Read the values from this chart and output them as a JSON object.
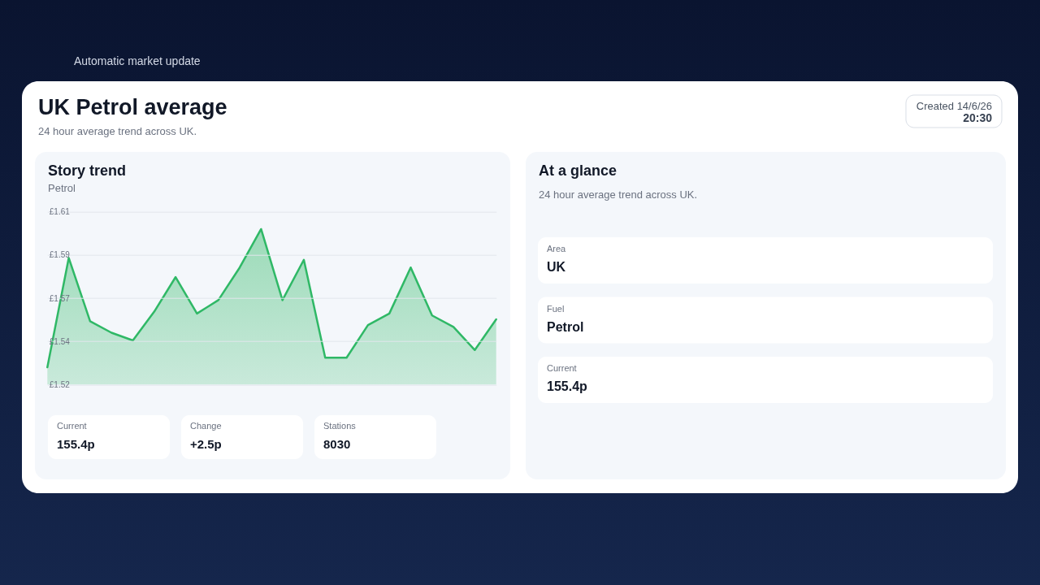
{
  "chart_data": [
    {
      "type": "area",
      "title": "Story trend",
      "subtitle": "Petrol",
      "categories": [
        null,
        null,
        null,
        null,
        null,
        null,
        null,
        null,
        null,
        null,
        null,
        null,
        null,
        null,
        null,
        null,
        null,
        null,
        null,
        null,
        null,
        null
      ],
      "series": [
        {
          "color": "#2fb866",
          "values": [
            1.529,
            1.586,
            1.553,
            1.547,
            1.543,
            1.558,
            1.576,
            1.557,
            1.564,
            1.581,
            1.601,
            1.564,
            1.585,
            1.534,
            1.534,
            1.551,
            1.557,
            1.581,
            1.556,
            1.55,
            1.538,
            1.554
          ]
        }
      ],
      "ylim": [
        1.52,
        1.61
      ],
      "yticks": [
        {
          "value": 1.52,
          "label": "£1.52"
        },
        {
          "value": 1.5425,
          "label": "£1.54"
        },
        {
          "value": 1.565,
          "label": "£1.57"
        },
        {
          "value": 1.5875,
          "label": "£1.59"
        },
        {
          "value": 1.61,
          "label": "£1.61"
        }
      ],
      "grid": "y",
      "tick_labels": "y",
      "annotations": [
        "Automatic market update",
        "UK Petrol average",
        "24 hour average trend across UK.",
        "Created 14/6/26",
        "20:30",
        "Current",
        "155.4p",
        "Change",
        "+2.5p",
        "Stations",
        "8030"
      ]
    },
    {
      "type": "other",
      "title": "At a glance",
      "subtitle": "24 hour average trend across UK.",
      "annotations": [
        "Area",
        "UK",
        "Fuel",
        "Petrol",
        "Current",
        "155.4p"
      ]
    }
  ]
}
